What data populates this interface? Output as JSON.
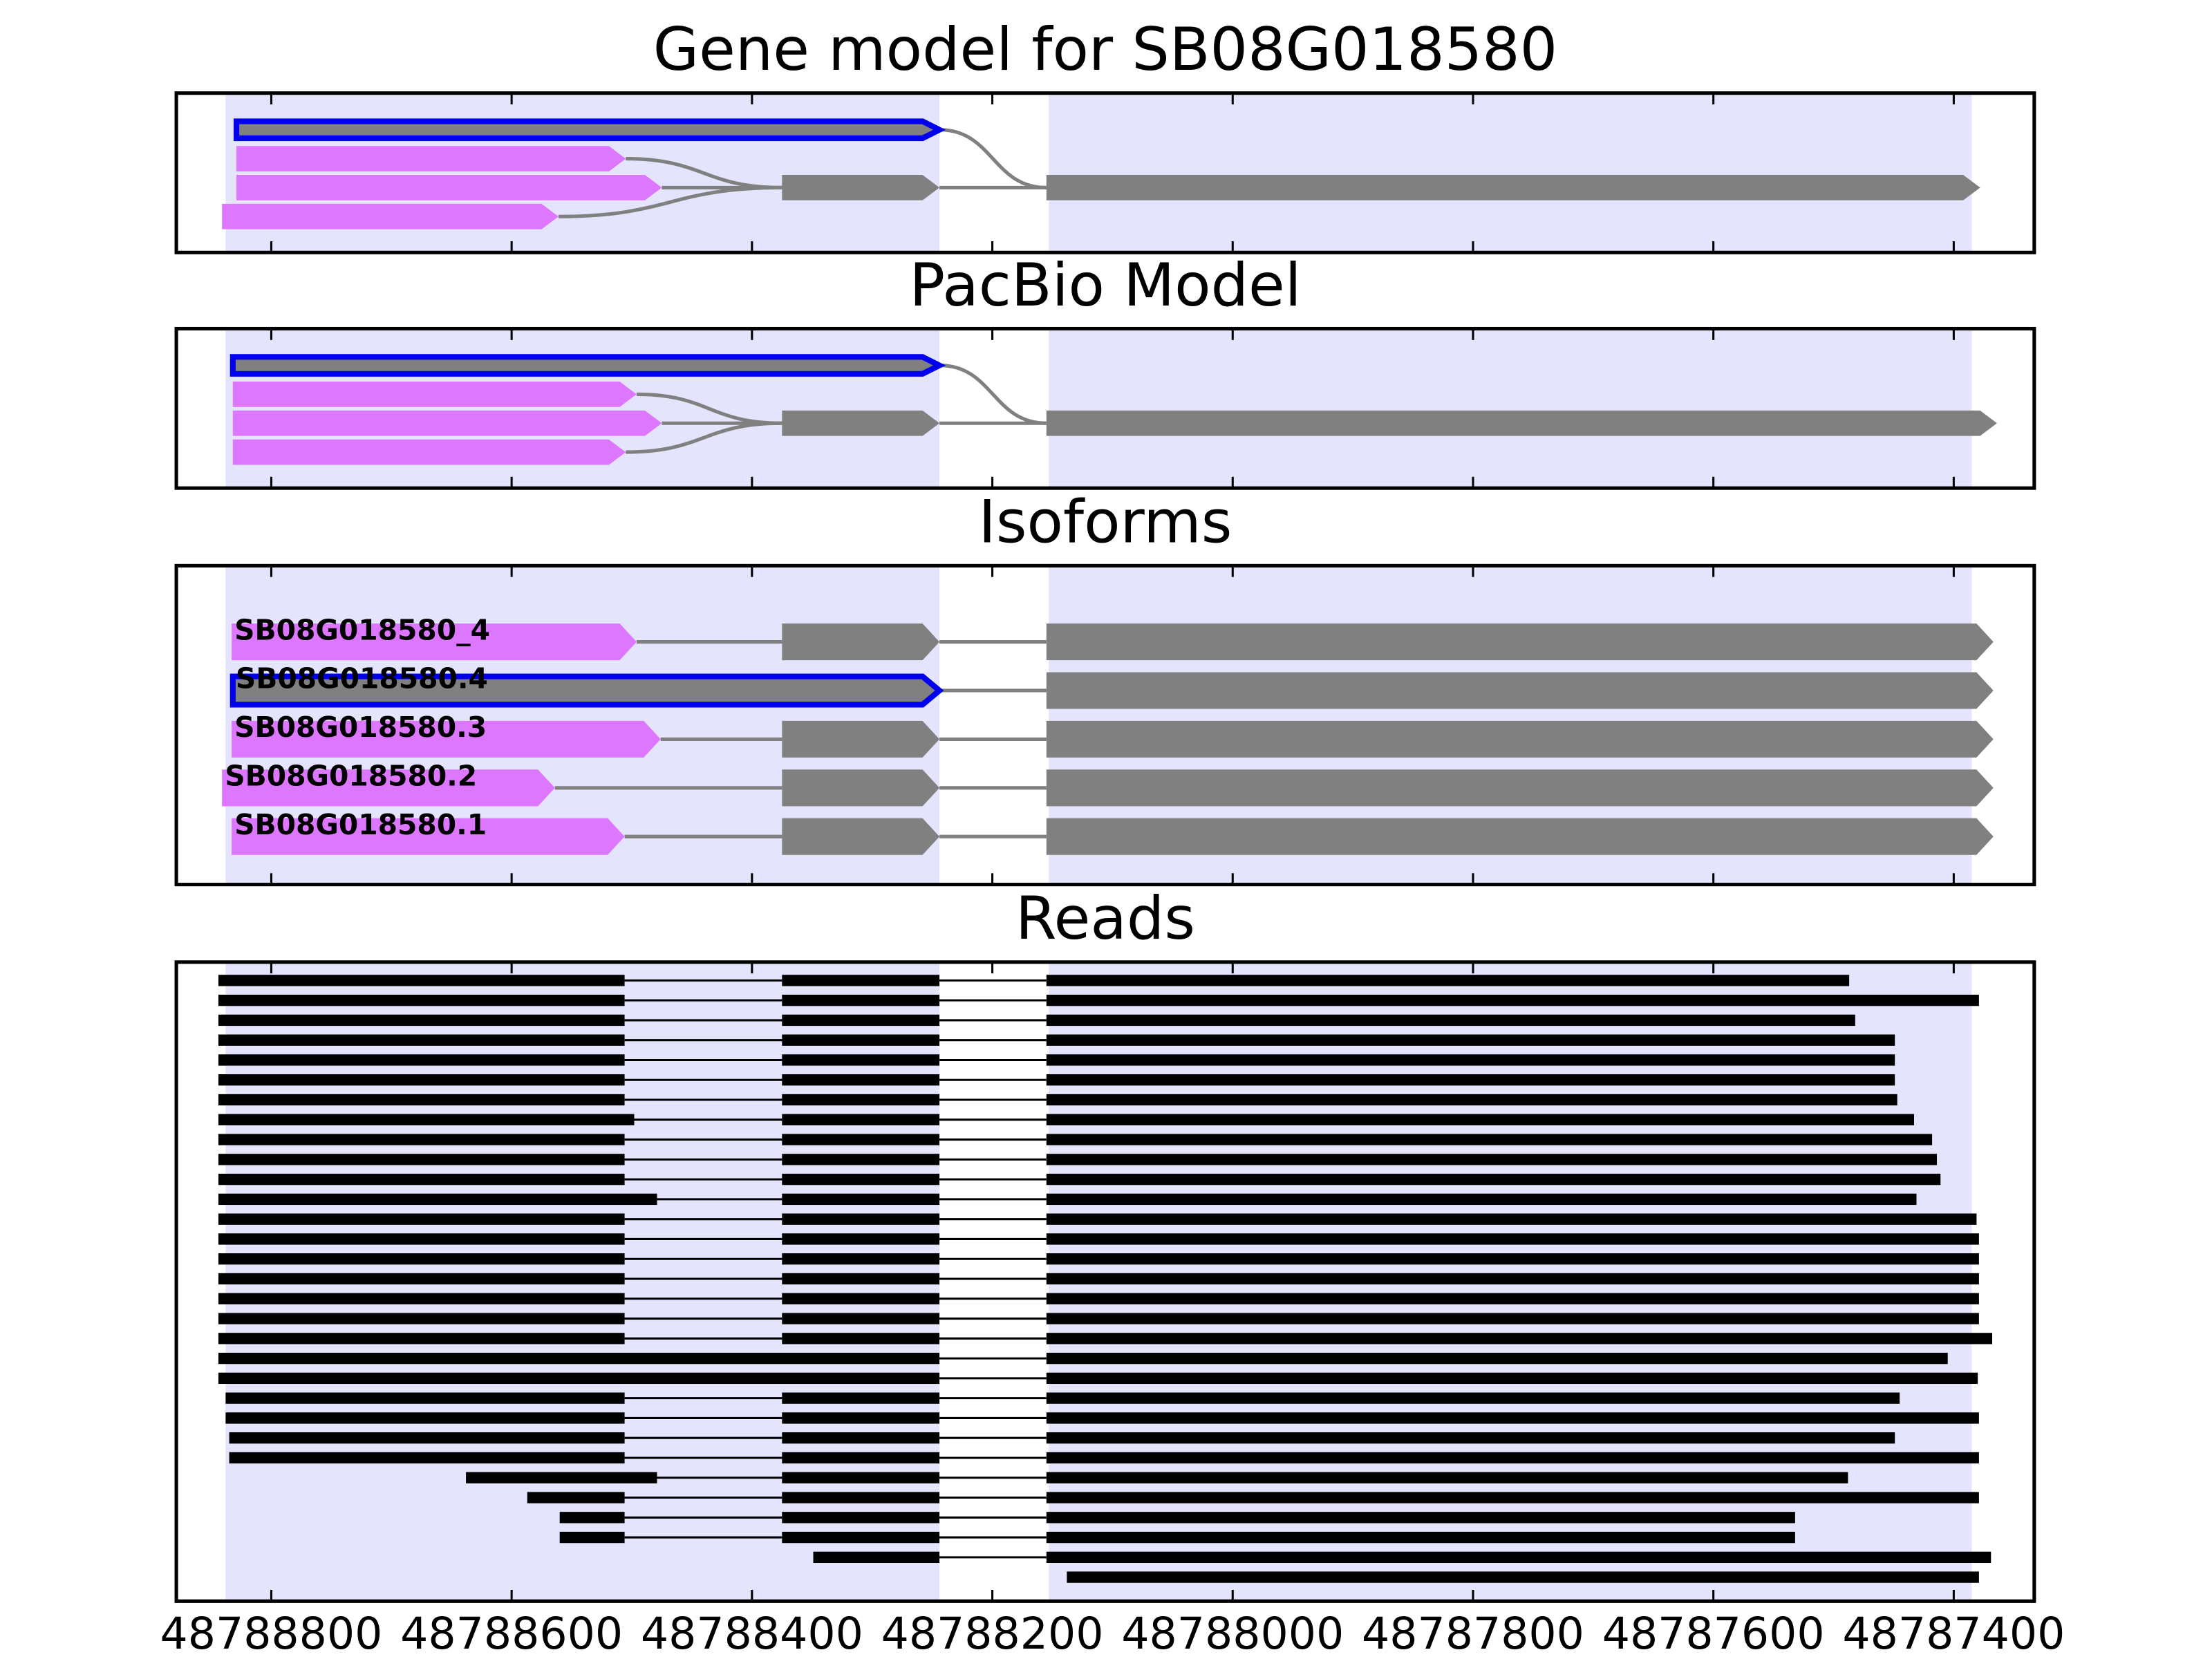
{
  "chart_data": [
    {
      "type": "gene_model",
      "title": "Gene model for SB08G018580",
      "xlim": [
        48788879,
        48787333
      ],
      "xticks": [
        48788800,
        48788600,
        48788400,
        48788200,
        48788000,
        48787800,
        48787600,
        48787400
      ],
      "regions": [
        [
          48788838,
          48788244
        ],
        [
          48788153,
          48787385
        ]
      ],
      "region_color": "#e4e4fc",
      "highlight_color": "#0000ee",
      "edge_color": "#808080",
      "nodes": [
        {
          "start": 48788829,
          "end": 48788244,
          "row": 0,
          "color": "#808080",
          "highlight": true
        },
        {
          "start": 48788829,
          "end": 48788505,
          "row": 1,
          "color": "#dd77ff"
        },
        {
          "start": 48788829,
          "end": 48788475,
          "row": 2,
          "color": "#dd77ff"
        },
        {
          "start": 48788841,
          "end": 48788561,
          "row": 3,
          "color": "#dd77ff"
        },
        {
          "start": 48788375,
          "end": 48788244,
          "row": 2,
          "color": "#808080"
        },
        {
          "start": 48788155,
          "end": 48787378,
          "row": 2,
          "color": "#808080"
        }
      ],
      "edges": [
        [
          0,
          5
        ],
        [
          1,
          4
        ],
        [
          2,
          4
        ],
        [
          3,
          4
        ],
        [
          4,
          5
        ]
      ]
    },
    {
      "type": "gene_model",
      "title": "PacBio Model",
      "xlim": [
        48788879,
        48787333
      ],
      "xticks": [
        48788800,
        48788600,
        48788400,
        48788200,
        48788000,
        48787800,
        48787600,
        48787400
      ],
      "regions": [
        [
          48788838,
          48788244
        ],
        [
          48788153,
          48787385
        ]
      ],
      "region_color": "#e4e4fc",
      "highlight_color": "#0000ee",
      "edge_color": "#808080",
      "nodes": [
        {
          "start": 48788832,
          "end": 48788244,
          "row": 0,
          "color": "#808080",
          "highlight": true
        },
        {
          "start": 48788832,
          "end": 48788496,
          "row": 1,
          "color": "#dd77ff"
        },
        {
          "start": 48788832,
          "end": 48788475,
          "row": 2,
          "color": "#dd77ff"
        },
        {
          "start": 48788832,
          "end": 48788505,
          "row": 3,
          "color": "#dd77ff"
        },
        {
          "start": 48788375,
          "end": 48788244,
          "row": 2,
          "color": "#808080"
        },
        {
          "start": 48788155,
          "end": 48787364,
          "row": 2,
          "color": "#808080"
        }
      ],
      "edges": [
        [
          0,
          5
        ],
        [
          1,
          4
        ],
        [
          2,
          4
        ],
        [
          3,
          4
        ],
        [
          4,
          5
        ]
      ]
    },
    {
      "type": "isoforms",
      "title": "Isoforms",
      "xlim": [
        48788879,
        48787333
      ],
      "xticks": [
        48788800,
        48788600,
        48788400,
        48788200,
        48788000,
        48787800,
        48787600,
        48787400
      ],
      "regions": [
        [
          48788838,
          48788244
        ],
        [
          48788153,
          48787385
        ]
      ],
      "region_color": "#e4e4fc",
      "highlight_color": "#0000ee",
      "edge_color": "#808080",
      "isoforms": [
        {
          "name": "SB08G018580_4",
          "exons": [
            {
              "start": 48788833,
              "end": 48788496,
              "color": "#dd77ff"
            },
            {
              "start": 48788375,
              "end": 48788244,
              "color": "#808080"
            },
            {
              "start": 48788155,
              "end": 48787367,
              "color": "#808080"
            }
          ]
        },
        {
          "name": "SB08G018580.4",
          "exons": [
            {
              "start": 48788832,
              "end": 48788244,
              "color": "#808080",
              "highlight": true
            },
            {
              "start": 48788155,
              "end": 48787367,
              "color": "#808080"
            }
          ]
        },
        {
          "name": "SB08G018580.3",
          "exons": [
            {
              "start": 48788833,
              "end": 48788476,
              "color": "#dd77ff"
            },
            {
              "start": 48788375,
              "end": 48788244,
              "color": "#808080"
            },
            {
              "start": 48788155,
              "end": 48787367,
              "color": "#808080"
            }
          ]
        },
        {
          "name": "SB08G018580.2",
          "exons": [
            {
              "start": 48788841,
              "end": 48788564,
              "color": "#dd77ff"
            },
            {
              "start": 48788375,
              "end": 48788244,
              "color": "#808080"
            },
            {
              "start": 48788155,
              "end": 48787367,
              "color": "#808080"
            }
          ]
        },
        {
          "name": "SB08G018580.1",
          "exons": [
            {
              "start": 48788833,
              "end": 48788506,
              "color": "#dd77ff"
            },
            {
              "start": 48788375,
              "end": 48788244,
              "color": "#808080"
            },
            {
              "start": 48788155,
              "end": 48787367,
              "color": "#808080"
            }
          ]
        }
      ]
    },
    {
      "type": "reads",
      "title": "Reads",
      "xlim": [
        48788879,
        48787333
      ],
      "xticks": [
        48788800,
        48788600,
        48788400,
        48788200,
        48788000,
        48787800,
        48787600,
        48787400
      ],
      "regions": [
        [
          48788838,
          48788244
        ],
        [
          48788153,
          48787385
        ]
      ],
      "region_color": "#e4e4fc",
      "read_color": "#000000",
      "reads": [
        [
          [
            48788844,
            48788506
          ],
          [
            48788375,
            48788244
          ],
          [
            48788155,
            48787487
          ]
        ],
        [
          [
            48788844,
            48788506
          ],
          [
            48788375,
            48788244
          ],
          [
            48788155,
            48787379
          ]
        ],
        [
          [
            48788844,
            48788506
          ],
          [
            48788375,
            48788244
          ],
          [
            48788155,
            48787482
          ]
        ],
        [
          [
            48788844,
            48788506
          ],
          [
            48788375,
            48788244
          ],
          [
            48788155,
            48787449
          ]
        ],
        [
          [
            48788844,
            48788506
          ],
          [
            48788375,
            48788244
          ],
          [
            48788155,
            48787449
          ]
        ],
        [
          [
            48788844,
            48788506
          ],
          [
            48788375,
            48788244
          ],
          [
            48788155,
            48787449
          ]
        ],
        [
          [
            48788844,
            48788506
          ],
          [
            48788375,
            48788244
          ],
          [
            48788155,
            48787447
          ]
        ],
        [
          [
            48788844,
            48788498
          ],
          [
            48788375,
            48788244
          ],
          [
            48788155,
            48787433
          ]
        ],
        [
          [
            48788844,
            48788506
          ],
          [
            48788375,
            48788244
          ],
          [
            48788155,
            48787418
          ]
        ],
        [
          [
            48788844,
            48788506
          ],
          [
            48788375,
            48788244
          ],
          [
            48788155,
            48787414
          ]
        ],
        [
          [
            48788844,
            48788506
          ],
          [
            48788375,
            48788244
          ],
          [
            48788155,
            48787411
          ]
        ],
        [
          [
            48788844,
            48788479
          ],
          [
            48788375,
            48788244
          ],
          [
            48788155,
            48787431
          ]
        ],
        [
          [
            48788844,
            48788506
          ],
          [
            48788375,
            48788244
          ],
          [
            48788155,
            48787381
          ]
        ],
        [
          [
            48788844,
            48788506
          ],
          [
            48788375,
            48788244
          ],
          [
            48788155,
            48787379
          ]
        ],
        [
          [
            48788844,
            48788506
          ],
          [
            48788375,
            48788244
          ],
          [
            48788155,
            48787379
          ]
        ],
        [
          [
            48788844,
            48788506
          ],
          [
            48788375,
            48788244
          ],
          [
            48788155,
            48787379
          ]
        ],
        [
          [
            48788844,
            48788506
          ],
          [
            48788375,
            48788244
          ],
          [
            48788155,
            48787379
          ]
        ],
        [
          [
            48788844,
            48788506
          ],
          [
            48788375,
            48788244
          ],
          [
            48788155,
            48787379
          ]
        ],
        [
          [
            48788844,
            48788506
          ],
          [
            48788375,
            48788244
          ],
          [
            48788155,
            48787368
          ]
        ],
        [
          [
            48788844,
            48788244
          ],
          [
            48788155,
            48787405
          ]
        ],
        [
          [
            48788844,
            48788244
          ],
          [
            48788155,
            48787380
          ]
        ],
        [
          [
            48788838,
            48788506
          ],
          [
            48788375,
            48788244
          ],
          [
            48788155,
            48787445
          ]
        ],
        [
          [
            48788838,
            48788506
          ],
          [
            48788375,
            48788244
          ],
          [
            48788155,
            48787379
          ]
        ],
        [
          [
            48788835,
            48788506
          ],
          [
            48788375,
            48788244
          ],
          [
            48788155,
            48787449
          ]
        ],
        [
          [
            48788835,
            48788506
          ],
          [
            48788375,
            48788244
          ],
          [
            48788155,
            48787379
          ]
        ],
        [
          [
            48788638,
            48788479
          ],
          [
            48788375,
            48788244
          ],
          [
            48788155,
            48787488
          ]
        ],
        [
          [
            48788587,
            48788506
          ],
          [
            48788375,
            48788244
          ],
          [
            48788155,
            48787379
          ]
        ],
        [
          [
            48788560,
            48788506
          ],
          [
            48788375,
            48788244
          ],
          [
            48788155,
            48787532
          ]
        ],
        [
          [
            48788560,
            48788506
          ],
          [
            48788375,
            48788244
          ],
          [
            48788155,
            48787532
          ]
        ],
        [
          [
            48788349,
            48788244
          ],
          [
            48788155,
            48787369
          ]
        ],
        [
          [
            48788138,
            48787379
          ]
        ]
      ]
    }
  ]
}
